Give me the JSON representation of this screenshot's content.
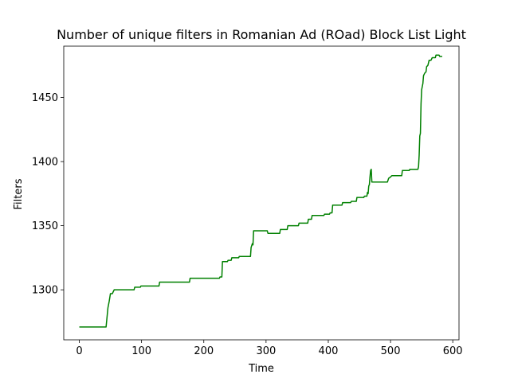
{
  "chart_data": {
    "type": "line",
    "title": "Number of unique filters in Romanian Ad (ROad) Block List Light",
    "xlabel": "Time",
    "ylabel": "Filters",
    "xlim": [
      -25,
      610
    ],
    "ylim": [
      1261,
      1490
    ],
    "xticks": [
      0,
      100,
      200,
      300,
      400,
      500,
      600
    ],
    "yticks": [
      1300,
      1350,
      1400,
      1450
    ],
    "grid": false,
    "line_color": "#008000",
    "series": [
      {
        "name": "",
        "points": [
          [
            0,
            1271
          ],
          [
            43,
            1271
          ],
          [
            44,
            1276
          ],
          [
            46,
            1286
          ],
          [
            48,
            1291
          ],
          [
            50,
            1297
          ],
          [
            53,
            1297
          ],
          [
            56,
            1300
          ],
          [
            88,
            1300
          ],
          [
            89,
            1302
          ],
          [
            98,
            1302
          ],
          [
            99,
            1303
          ],
          [
            128,
            1303
          ],
          [
            129,
            1306
          ],
          [
            177,
            1306
          ],
          [
            178,
            1309
          ],
          [
            225,
            1309
          ],
          [
            226,
            1310
          ],
          [
            229,
            1310
          ],
          [
            230,
            1322
          ],
          [
            238,
            1322
          ],
          [
            239,
            1323
          ],
          [
            244,
            1323
          ],
          [
            245,
            1325
          ],
          [
            256,
            1325
          ],
          [
            257,
            1326
          ],
          [
            275,
            1326
          ],
          [
            276,
            1333
          ],
          [
            278,
            1336
          ],
          [
            279,
            1335
          ],
          [
            280,
            1346
          ],
          [
            302,
            1346
          ],
          [
            303,
            1344
          ],
          [
            322,
            1344
          ],
          [
            323,
            1347
          ],
          [
            334,
            1347
          ],
          [
            335,
            1350
          ],
          [
            352,
            1350
          ],
          [
            353,
            1352
          ],
          [
            367,
            1352
          ],
          [
            368,
            1355
          ],
          [
            373,
            1355
          ],
          [
            374,
            1358
          ],
          [
            393,
            1358
          ],
          [
            394,
            1359
          ],
          [
            402,
            1359
          ],
          [
            403,
            1360
          ],
          [
            406,
            1360
          ],
          [
            407,
            1366
          ],
          [
            422,
            1366
          ],
          [
            423,
            1368
          ],
          [
            436,
            1368
          ],
          [
            437,
            1369
          ],
          [
            445,
            1369
          ],
          [
            446,
            1372
          ],
          [
            457,
            1372
          ],
          [
            458,
            1373
          ],
          [
            462,
            1373
          ],
          [
            463,
            1376
          ],
          [
            464,
            1375
          ],
          [
            465,
            1381
          ],
          [
            466,
            1382
          ],
          [
            467,
            1388
          ],
          [
            468,
            1393
          ],
          [
            469,
            1394
          ],
          [
            470,
            1384
          ],
          [
            495,
            1384
          ],
          [
            497,
            1387
          ],
          [
            500,
            1388
          ],
          [
            502,
            1389
          ],
          [
            518,
            1389
          ],
          [
            519,
            1393
          ],
          [
            530,
            1393
          ],
          [
            531,
            1394
          ],
          [
            544,
            1394
          ],
          [
            545,
            1396
          ],
          [
            546,
            1405
          ],
          [
            547,
            1420
          ],
          [
            548,
            1422
          ],
          [
            549,
            1445
          ],
          [
            550,
            1456
          ],
          [
            552,
            1461
          ],
          [
            553,
            1467
          ],
          [
            555,
            1469
          ],
          [
            557,
            1470
          ],
          [
            558,
            1474
          ],
          [
            560,
            1475
          ],
          [
            562,
            1479
          ],
          [
            565,
            1479
          ],
          [
            567,
            1481
          ],
          [
            572,
            1481
          ],
          [
            573,
            1483
          ],
          [
            578,
            1483
          ],
          [
            579,
            1482
          ],
          [
            583,
            1482
          ]
        ]
      }
    ]
  }
}
